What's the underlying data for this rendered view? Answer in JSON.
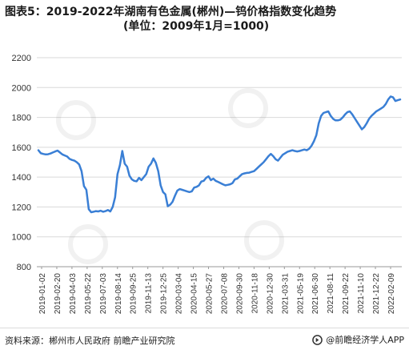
{
  "title": {
    "line1": "图表5：2019-2022年湖南有色金属(郴州)—钨价格指数变化趋势",
    "line2": "(单位：2009年1月=1000)"
  },
  "source": "资料来源：郴州市人民政府 前瞻产业研究院",
  "brand": "@前瞻经济学人APP",
  "colors": {
    "line": "#3a7fd5",
    "grid": "#d9d9d9",
    "axis": "#999999",
    "text": "#333333"
  },
  "chart_data": {
    "type": "line",
    "title": "图表5：2019-2022年湖南有色金属(郴州)—钨价格指数变化趋势",
    "subtitle": "(单位：2009年1月=1000)",
    "xlabel": "",
    "ylabel": "",
    "ylim": [
      800,
      2200
    ],
    "yticks": [
      800,
      1000,
      1200,
      1400,
      1600,
      1800,
      2000,
      2200
    ],
    "grid": true,
    "legend": "none",
    "xtick_labels": [
      "2019-01-02",
      "2019-02-20",
      "2019-04-03",
      "2019-05-22",
      "2019-07-03",
      "2019-08-14",
      "2019-09-25",
      "2019-11-13",
      "2019-12-25",
      "2020-03-04",
      "2020-04-15",
      "2020-05-27",
      "2020-07-08",
      "2020-09-30",
      "2020-11-18",
      "2020-12-30",
      "2021-03-31",
      "2021-05-19",
      "2021-06-30",
      "2021-08-11",
      "2021-09-22",
      "2021-11-10",
      "2021-12-22",
      "2022-02-09"
    ],
    "values": [
      1580,
      1560,
      1555,
      1552,
      1553,
      1558,
      1565,
      1572,
      1578,
      1565,
      1552,
      1545,
      1538,
      1522,
      1515,
      1510,
      1500,
      1485,
      1440,
      1340,
      1315,
      1185,
      1165,
      1168,
      1172,
      1170,
      1175,
      1168,
      1172,
      1180,
      1170,
      1200,
      1265,
      1420,
      1480,
      1575,
      1490,
      1470,
      1410,
      1385,
      1375,
      1372,
      1395,
      1380,
      1400,
      1420,
      1470,
      1490,
      1525,
      1495,
      1440,
      1345,
      1300,
      1285,
      1205,
      1215,
      1235,
      1275,
      1310,
      1320,
      1315,
      1310,
      1305,
      1300,
      1305,
      1330,
      1335,
      1345,
      1370,
      1375,
      1395,
      1405,
      1380,
      1390,
      1375,
      1368,
      1360,
      1352,
      1345,
      1348,
      1352,
      1360,
      1385,
      1390,
      1405,
      1420,
      1425,
      1428,
      1430,
      1435,
      1440,
      1455,
      1470,
      1485,
      1500,
      1520,
      1540,
      1555,
      1540,
      1520,
      1510,
      1530,
      1550,
      1560,
      1570,
      1575,
      1580,
      1575,
      1572,
      1575,
      1580,
      1585,
      1580,
      1590,
      1610,
      1640,
      1680,
      1760,
      1810,
      1830,
      1835,
      1840,
      1810,
      1790,
      1780,
      1780,
      1785,
      1800,
      1820,
      1835,
      1840,
      1820,
      1795,
      1770,
      1745,
      1720,
      1735,
      1760,
      1790,
      1810,
      1825,
      1840,
      1850,
      1860,
      1870,
      1890,
      1920,
      1940,
      1935,
      1910,
      1915,
      1920
    ]
  }
}
